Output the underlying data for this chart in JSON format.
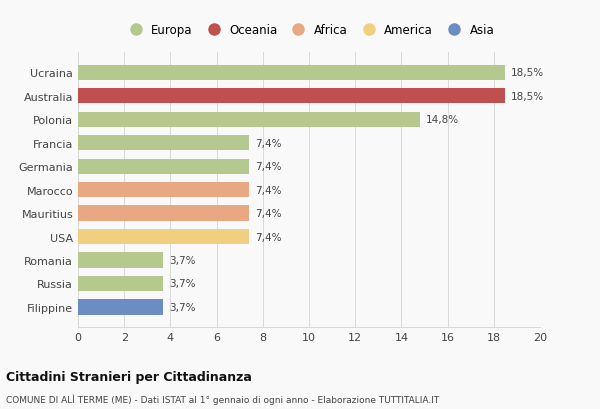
{
  "categories": [
    "Ucraina",
    "Australia",
    "Polonia",
    "Francia",
    "Germania",
    "Marocco",
    "Mauritius",
    "USA",
    "Romania",
    "Russia",
    "Filippine"
  ],
  "values": [
    18.5,
    18.5,
    14.8,
    7.4,
    7.4,
    7.4,
    7.4,
    7.4,
    3.7,
    3.7,
    3.7
  ],
  "labels": [
    "18,5%",
    "18,5%",
    "14,8%",
    "7,4%",
    "7,4%",
    "7,4%",
    "7,4%",
    "7,4%",
    "3,7%",
    "3,7%",
    "3,7%"
  ],
  "colors": [
    "#b5c98e",
    "#c0504d",
    "#b5c98e",
    "#b5c98e",
    "#b5c98e",
    "#e8a882",
    "#e8a882",
    "#f0d080",
    "#b5c98e",
    "#b5c98e",
    "#6b8dc4"
  ],
  "legend": [
    {
      "label": "Europa",
      "color": "#b5c98e"
    },
    {
      "label": "Oceania",
      "color": "#c0504d"
    },
    {
      "label": "Africa",
      "color": "#e8a882"
    },
    {
      "label": "America",
      "color": "#f0d080"
    },
    {
      "label": "Asia",
      "color": "#6b8dc4"
    }
  ],
  "xlim": [
    0,
    20
  ],
  "xticks": [
    0,
    2,
    4,
    6,
    8,
    10,
    12,
    14,
    16,
    18,
    20
  ],
  "title": "Cittadini Stranieri per Cittadinanza",
  "subtitle": "COMUNE DI ALÌ TERME (ME) - Dati ISTAT al 1° gennaio di ogni anno - Elaborazione TUTTITALIA.IT",
  "background_color": "#f9f9f9",
  "bar_height": 0.65
}
